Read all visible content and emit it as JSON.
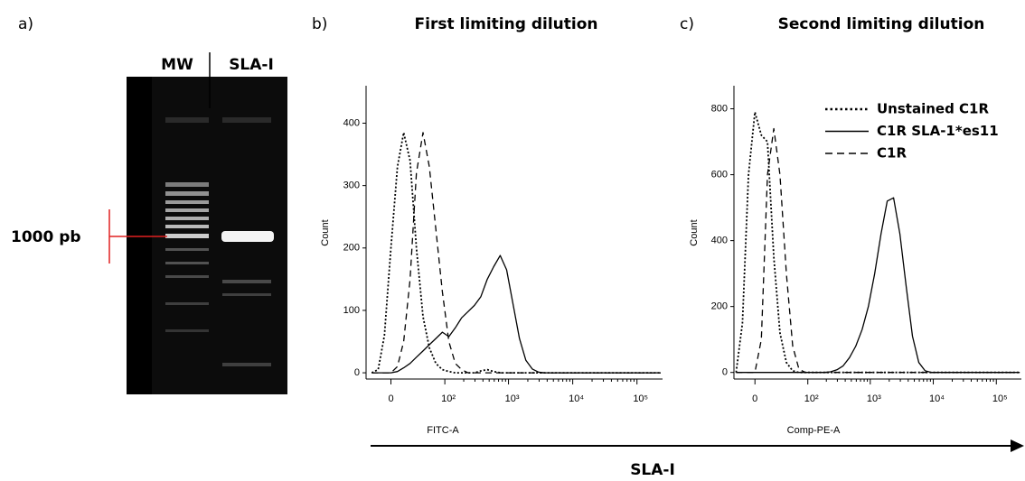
{
  "panels": {
    "a": "a)",
    "b": "b)",
    "c": "c)"
  },
  "gel": {
    "lane_labels": [
      "MW",
      "SLA-I"
    ],
    "marker_label": "1000 pb"
  },
  "shared_axis_label": "SLA-I",
  "chart_data": [
    {
      "type": "line",
      "title": "First limiting dilution",
      "x_label": "FITC-A",
      "y_label": "Count",
      "x_scale": "biexponential",
      "x": [
        -22,
        -14,
        -7,
        0,
        7,
        14,
        22,
        31,
        42,
        55,
        71,
        91,
        116,
        147,
        185,
        234,
        295,
        371,
        468,
        589,
        742,
        934,
        1176,
        1480,
        1863,
        2346,
        2953,
        3718,
        4680,
        5892,
        7418,
        9339,
        11757,
        14800,
        18633,
        23455,
        29529,
        37175,
        46801,
        58919,
        74175,
        93376,
        117559,
        148000,
        186323,
        234571
      ],
      "xlim": [
        -30,
        250000
      ],
      "xticks": [
        0,
        {
          "value": 100,
          "label": "10²"
        },
        {
          "value": 1000,
          "label": "10³"
        },
        {
          "value": 10000,
          "label": "10⁴"
        },
        {
          "value": 100000,
          "label": "10⁵"
        }
      ],
      "ylim": [
        -10,
        460
      ],
      "yticks": [
        0,
        100,
        200,
        300,
        400
      ],
      "series": [
        {
          "color": "#000000",
          "dash": "dotted",
          "values": [
            0,
            5,
            60,
            200,
            330,
            385,
            340,
            200,
            90,
            40,
            15,
            5,
            2,
            0,
            0,
            0,
            0,
            3,
            5,
            2,
            0,
            0,
            0,
            0,
            0,
            0,
            0,
            0,
            0,
            0,
            0,
            0,
            0,
            0,
            0,
            0,
            0,
            0,
            0,
            0,
            0,
            0,
            0,
            0,
            0,
            0
          ]
        },
        {
          "color": "#000000",
          "dash": "dashed",
          "values": [
            0,
            0,
            0,
            0,
            10,
            50,
            150,
            320,
            385,
            330,
            230,
            130,
            50,
            15,
            5,
            0,
            0,
            0,
            0,
            0,
            0,
            0,
            0,
            0,
            0,
            0,
            0,
            0,
            0,
            0,
            0,
            0,
            0,
            0,
            0,
            0,
            0,
            0,
            0,
            0,
            0,
            0,
            0,
            0,
            0,
            0
          ]
        },
        {
          "color": "#000000",
          "dash": "solid",
          "values": [
            0,
            0,
            0,
            0,
            2,
            8,
            15,
            25,
            35,
            45,
            55,
            65,
            58,
            72,
            88,
            98,
            108,
            122,
            150,
            170,
            188,
            165,
            110,
            55,
            20,
            6,
            1,
            0,
            0,
            0,
            0,
            0,
            0,
            0,
            0,
            0,
            0,
            0,
            0,
            0,
            0,
            0,
            0,
            0,
            0,
            0
          ]
        }
      ]
    },
    {
      "type": "line",
      "title": "Second limiting dilution",
      "x_label": "Comp-PE-A",
      "y_label": "Count",
      "x_scale": "biexponential",
      "x": [
        -22,
        -14,
        -7,
        0,
        7,
        14,
        22,
        31,
        42,
        55,
        71,
        91,
        116,
        147,
        185,
        234,
        295,
        371,
        468,
        589,
        742,
        934,
        1176,
        1480,
        1863,
        2346,
        2953,
        3718,
        4680,
        5892,
        7418,
        9339,
        11757,
        14800,
        18633,
        23455,
        29529,
        37175,
        46801,
        58919,
        74175,
        93376,
        117559,
        148000,
        186323,
        234571
      ],
      "xlim": [
        -25,
        250000
      ],
      "xticks": [
        0,
        {
          "value": 100,
          "label": "10²"
        },
        {
          "value": 1000,
          "label": "10³"
        },
        {
          "value": 10000,
          "label": "10⁴"
        },
        {
          "value": 100000,
          "label": "10⁵"
        }
      ],
      "ylim": [
        -20,
        870
      ],
      "yticks": [
        0,
        200,
        400,
        600,
        800
      ],
      "legend": "upper right",
      "series": [
        {
          "name": "Unstained C1R",
          "color": "#000000",
          "dash": "dotted",
          "values": [
            0,
            150,
            600,
            790,
            720,
            700,
            350,
            120,
            30,
            5,
            0,
            0,
            0,
            0,
            0,
            0,
            0,
            0,
            0,
            0,
            0,
            0,
            0,
            0,
            0,
            0,
            0,
            0,
            0,
            0,
            0,
            0,
            0,
            0,
            0,
            0,
            0,
            0,
            0,
            0,
            0,
            0,
            0,
            0,
            0,
            0
          ]
        },
        {
          "name": "C1R SLA-1*es11",
          "color": "#000000",
          "dash": "solid",
          "values": [
            0,
            0,
            0,
            0,
            0,
            0,
            0,
            0,
            0,
            0,
            0,
            0,
            0,
            0,
            0,
            2,
            8,
            20,
            45,
            80,
            130,
            200,
            300,
            420,
            520,
            530,
            420,
            260,
            110,
            30,
            5,
            0,
            0,
            0,
            0,
            0,
            0,
            0,
            0,
            0,
            0,
            0,
            0,
            0,
            0,
            0
          ]
        },
        {
          "name": "C1R",
          "color": "#000000",
          "dash": "dashed",
          "values": [
            0,
            0,
            0,
            0,
            100,
            600,
            740,
            600,
            300,
            80,
            10,
            0,
            0,
            0,
            0,
            0,
            0,
            0,
            0,
            0,
            0,
            0,
            0,
            0,
            0,
            0,
            0,
            0,
            0,
            0,
            0,
            0,
            0,
            0,
            0,
            0,
            0,
            0,
            0,
            0,
            0,
            0,
            0,
            0,
            0,
            0
          ]
        }
      ]
    }
  ]
}
